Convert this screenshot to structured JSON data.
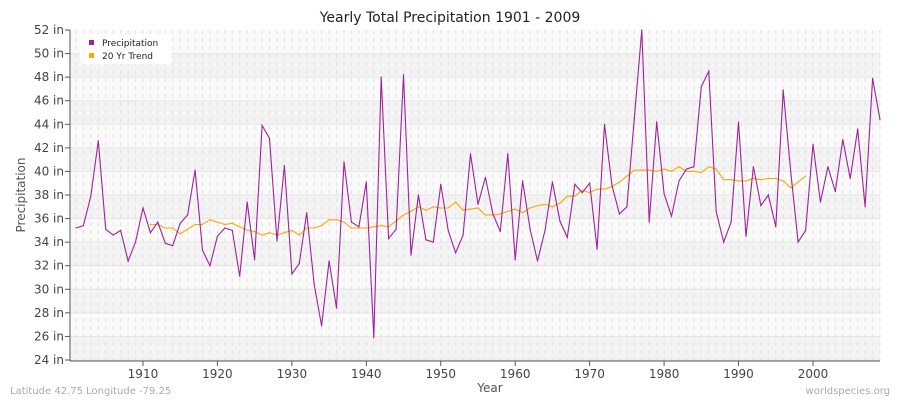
{
  "chart_data": {
    "type": "line",
    "title": "Yearly Total Precipitation 1901 - 2009",
    "xlabel": "Year",
    "ylabel": "Precipitation",
    "xlim": [
      1901,
      2009
    ],
    "ylim": [
      24,
      52
    ],
    "x_ticks": [
      1910,
      1920,
      1930,
      1940,
      1950,
      1960,
      1970,
      1980,
      1990,
      2000
    ],
    "y_ticks": [
      "24 in",
      "26 in",
      "28 in",
      "30 in",
      "32 in",
      "34 in",
      "36 in",
      "38 in",
      "40 in",
      "42 in",
      "44 in",
      "46 in",
      "48 in",
      "50 in",
      "52 in"
    ],
    "grid": true,
    "legend_position": "top-left",
    "series": [
      {
        "name": "Precipitation",
        "color": "#a020a0",
        "start_year": 1901,
        "values": [
          35.2,
          35.4,
          37.9,
          42.6,
          35.1,
          34.6,
          35.0,
          32.4,
          34.0,
          36.9,
          34.8,
          35.7,
          33.9,
          33.7,
          35.6,
          36.3,
          40.1,
          33.3,
          32.0,
          34.5,
          35.2,
          35.0,
          31.1,
          37.4,
          32.5,
          43.9,
          42.8,
          34.1,
          40.5,
          31.3,
          32.2,
          36.5,
          30.4,
          26.9,
          32.4,
          28.4,
          40.8,
          35.7,
          35.3,
          39.1,
          25.9,
          48.0,
          34.3,
          35.1,
          48.2,
          32.9,
          38.0,
          34.2,
          34.0,
          38.9,
          35.0,
          33.1,
          34.6,
          41.5,
          37.2,
          39.5,
          36.4,
          34.9,
          41.5,
          32.5,
          39.2,
          35.1,
          32.4,
          35.0,
          39.1,
          35.8,
          34.4,
          38.9,
          38.2,
          39.0,
          33.4,
          44.0,
          38.8,
          36.4,
          37.0,
          44.5,
          52.0,
          35.7,
          44.2,
          38.1,
          36.2,
          39.2,
          40.2,
          40.4,
          47.2,
          48.5,
          36.6,
          34.0,
          35.7,
          44.2,
          34.5,
          40.4,
          37.1,
          38.0,
          35.3,
          46.9,
          40.0,
          34.0,
          35.0,
          42.3,
          37.4,
          40.4,
          38.3,
          42.7,
          39.4,
          43.6,
          37.0,
          47.9,
          44.4
        ]
      },
      {
        "name": "20 Yr Trend",
        "color": "#ffa500",
        "start_year": 1911,
        "values": [
          35.5,
          35.5,
          35.2,
          35.2,
          34.7,
          35.1,
          35.5,
          35.5,
          35.9,
          35.7,
          35.5,
          35.6,
          35.3,
          35.0,
          34.9,
          34.6,
          34.8,
          34.6,
          34.8,
          35.0,
          34.6,
          35.2,
          35.2,
          35.4,
          35.9,
          35.9,
          35.7,
          35.2,
          35.2,
          35.2,
          35.3,
          35.4,
          35.3,
          35.8,
          36.3,
          36.6,
          37.0,
          36.7,
          37.0,
          36.9,
          36.9,
          37.4,
          36.7,
          36.8,
          36.9,
          36.3,
          36.3,
          36.4,
          36.6,
          36.8,
          36.5,
          36.9,
          37.1,
          37.2,
          37.0,
          37.3,
          37.9,
          37.9,
          38.4,
          38.2,
          38.5,
          38.5,
          38.7,
          39.1,
          39.6,
          40.1,
          40.1,
          40.1,
          40.0,
          40.2,
          40.0,
          40.4,
          40.0,
          40.0,
          39.9,
          40.4,
          40.2,
          39.3,
          39.3,
          39.2,
          39.2,
          39.4,
          39.3,
          39.4,
          39.4,
          39.2,
          38.6,
          39.1,
          39.6
        ]
      }
    ]
  },
  "footer": {
    "location": "Latitude 42.75 Longitude -79.25",
    "source": "worldspecies.org"
  }
}
